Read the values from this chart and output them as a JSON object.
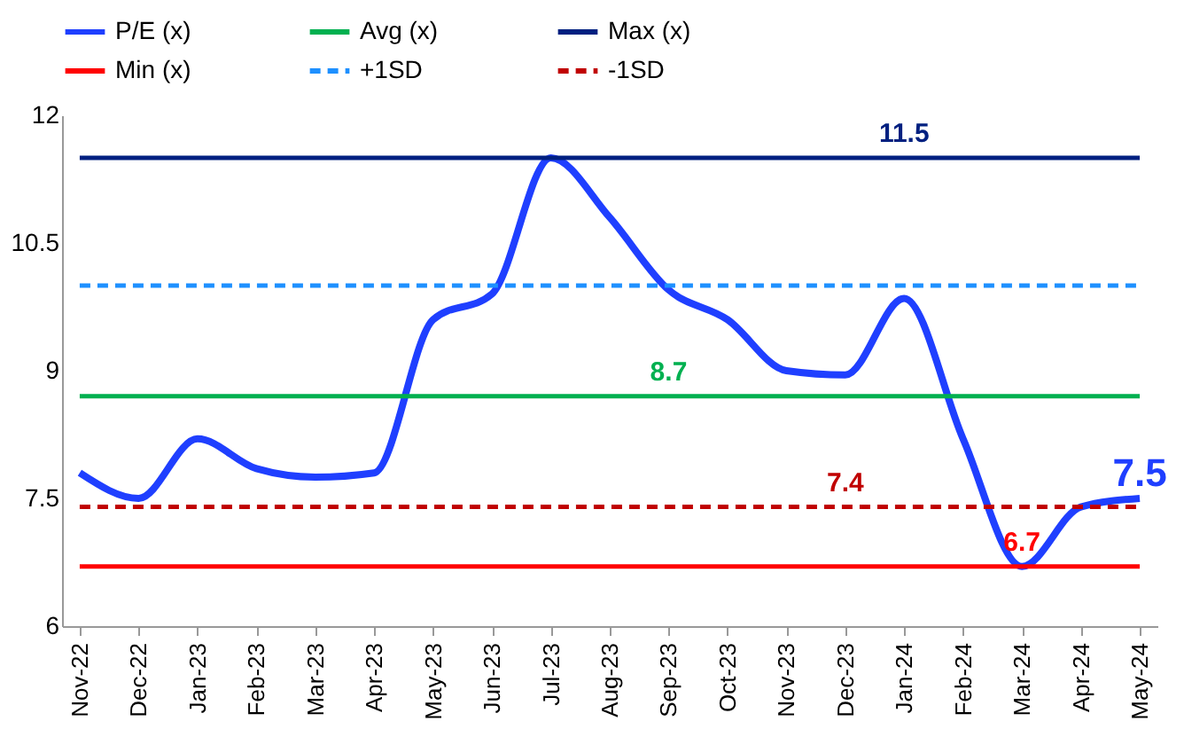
{
  "chart_data": {
    "type": "line",
    "categories": [
      "Nov-22",
      "Dec-22",
      "Jan-23",
      "Feb-23",
      "Mar-23",
      "Apr-23",
      "May-23",
      "Jun-23",
      "Jul-23",
      "Aug-23",
      "Sep-23",
      "Oct-23",
      "Nov-23",
      "Dec-23",
      "Jan-24",
      "Feb-24",
      "Mar-24",
      "Apr-24",
      "May-24"
    ],
    "series": [
      {
        "name": "P/E (x)",
        "color": "#1f3fff",
        "line_style": "solid",
        "values": [
          7.8,
          7.5,
          8.2,
          7.85,
          7.75,
          7.8,
          9.6,
          9.9,
          11.5,
          10.8,
          9.95,
          9.6,
          9.0,
          8.95,
          9.85,
          8.2,
          6.7,
          7.4,
          7.5
        ]
      },
      {
        "name": "Avg (x)",
        "color": "#00b050",
        "line_style": "solid",
        "values": [
          8.7,
          8.7,
          8.7,
          8.7,
          8.7,
          8.7,
          8.7,
          8.7,
          8.7,
          8.7,
          8.7,
          8.7,
          8.7,
          8.7,
          8.7,
          8.7,
          8.7,
          8.7,
          8.7
        ]
      },
      {
        "name": "Max (x)",
        "color": "#002080",
        "line_style": "solid",
        "values": [
          11.5,
          11.5,
          11.5,
          11.5,
          11.5,
          11.5,
          11.5,
          11.5,
          11.5,
          11.5,
          11.5,
          11.5,
          11.5,
          11.5,
          11.5,
          11.5,
          11.5,
          11.5,
          11.5
        ]
      },
      {
        "name": "Min (x)",
        "color": "#ff0000",
        "line_style": "solid",
        "values": [
          6.7,
          6.7,
          6.7,
          6.7,
          6.7,
          6.7,
          6.7,
          6.7,
          6.7,
          6.7,
          6.7,
          6.7,
          6.7,
          6.7,
          6.7,
          6.7,
          6.7,
          6.7,
          6.7
        ]
      },
      {
        "name": "+1SD",
        "color": "#1e90ff",
        "line_style": "dashed",
        "values": [
          10.0,
          10.0,
          10.0,
          10.0,
          10.0,
          10.0,
          10.0,
          10.0,
          10.0,
          10.0,
          10.0,
          10.0,
          10.0,
          10.0,
          10.0,
          10.0,
          10.0,
          10.0,
          10.0
        ]
      },
      {
        "name": "-1SD",
        "color": "#c00000",
        "line_style": "dashed",
        "values": [
          7.4,
          7.4,
          7.4,
          7.4,
          7.4,
          7.4,
          7.4,
          7.4,
          7.4,
          7.4,
          7.4,
          7.4,
          7.4,
          7.4,
          7.4,
          7.4,
          7.4,
          7.4,
          7.4
        ]
      }
    ],
    "annotations": [
      {
        "text": "11.5",
        "x": "Jan-24",
        "y": 11.5
      },
      {
        "text": "8.7",
        "x": "Sep-23",
        "y": 8.7
      },
      {
        "text": "7.4",
        "x": "Dec-23",
        "y": 7.4
      },
      {
        "text": "6.7",
        "x": "Mar-24",
        "y": 6.7
      },
      {
        "text": "7.5",
        "x": "May-24",
        "y": 7.5
      }
    ],
    "ylim": [
      6,
      12
    ],
    "yticks": [
      6,
      7.5,
      9,
      10.5,
      12
    ],
    "grid": false,
    "legend": "top",
    "marker": "none"
  }
}
